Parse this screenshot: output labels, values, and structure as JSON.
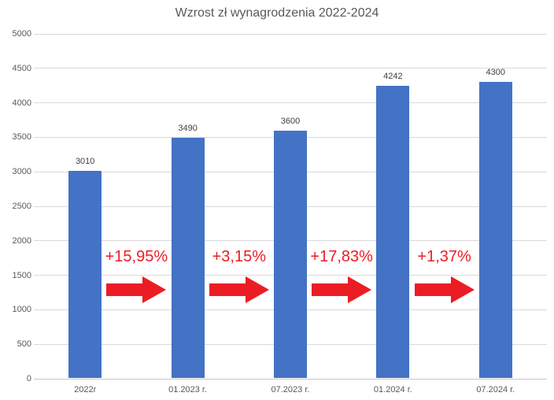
{
  "title": "Wzrost zł wynagrodzenia 2022-2024",
  "colors": {
    "bar": "#4472C4",
    "accent_red": "#EC1C24",
    "title_text": "#595959",
    "axis_text": "#595959",
    "data_label_text": "#404040",
    "gridline": "#D9D9D9",
    "axis_line": "#C8C8C8",
    "background": "#FFFFFF"
  },
  "chart_data": {
    "type": "bar",
    "title": "Wzrost zł wynagrodzenia 2022-2024",
    "categories": [
      "2022r",
      "01.2023 r.",
      "07.2023 r.",
      "01.2024 r.",
      "07.2024 r."
    ],
    "values": [
      3010,
      3490,
      3600,
      4242,
      4300
    ],
    "data_labels": [
      "3010",
      "3490",
      "3600",
      "4242",
      "4300"
    ],
    "growth_annotations": [
      "+15,95%",
      "+3,15%",
      "+17,83%",
      "+1,37%"
    ],
    "annotation_style": "red right-pointing arrows between consecutive bars",
    "xlabel": "",
    "ylabel": "",
    "ylim": [
      0,
      5000
    ],
    "ytick_step": 500,
    "yticks": [
      0,
      500,
      1000,
      1500,
      2000,
      2500,
      3000,
      3500,
      4000,
      4500,
      5000
    ],
    "grid": "horizontal",
    "legend": "none"
  }
}
